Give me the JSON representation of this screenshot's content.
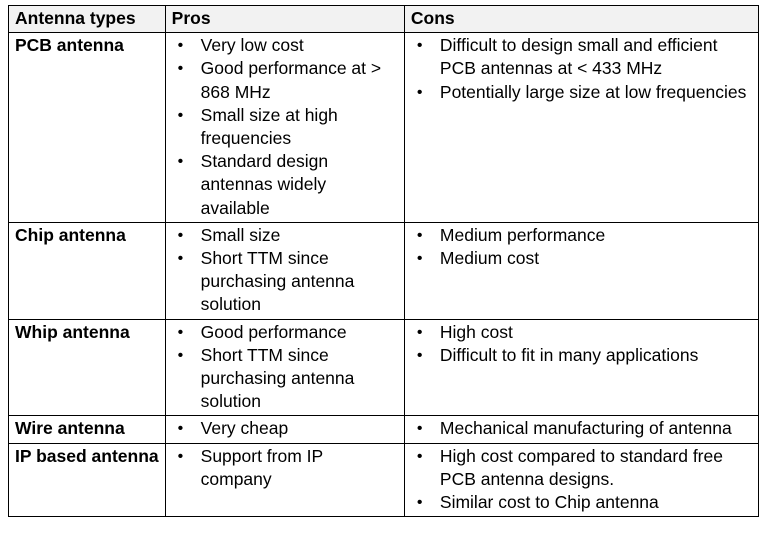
{
  "table": {
    "headers": [
      "Antenna types",
      "Pros",
      "Cons"
    ],
    "bullet_glyph": "•",
    "rows": [
      {
        "type": "PCB antenna",
        "pros": [
          "Very low cost",
          "Good performance at > 868 MHz",
          "Small size at high frequencies",
          "Standard design antennas widely available"
        ],
        "cons": [
          "Difficult to design small and efficient PCB antennas at < 433 MHz",
          "Potentially large size at low frequencies"
        ]
      },
      {
        "type": "Chip antenna",
        "pros": [
          "Small size",
          "Short TTM since purchasing antenna solution"
        ],
        "cons": [
          "Medium performance",
          "Medium cost"
        ]
      },
      {
        "type": "Whip antenna",
        "pros": [
          "Good performance",
          "Short TTM since purchasing antenna solution"
        ],
        "cons": [
          "High cost",
          "Difficult to fit in many applications"
        ]
      },
      {
        "type": "Wire antenna",
        "pros": [
          "Very cheap"
        ],
        "cons": [
          "Mechanical manufacturing of antenna"
        ]
      },
      {
        "type": "IP based antenna",
        "pros": [
          "Support from IP company"
        ],
        "cons": [
          "High cost compared to standard free PCB antenna designs.",
          "Similar cost to Chip antenna"
        ]
      }
    ]
  }
}
